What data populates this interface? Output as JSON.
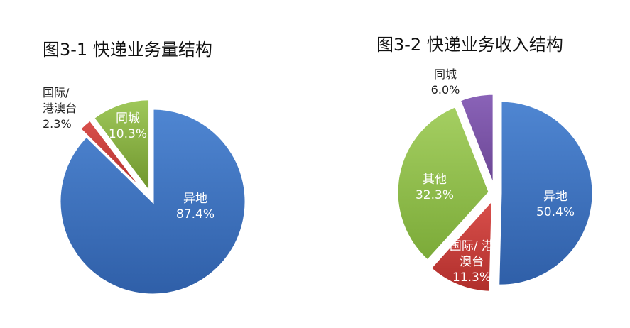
{
  "chart_data": [
    {
      "type": "pie",
      "title": "图3-1   快递业务量结构",
      "slices": [
        {
          "name": "异地",
          "value": 87.4,
          "label": "87.4%",
          "color": "#3E74C3"
        },
        {
          "name": "国际/港澳台",
          "name_lines": [
            "国际/",
            "港澳台"
          ],
          "value": 2.3,
          "label": "2.3%",
          "color": "#C93A37"
        },
        {
          "name": "同城",
          "value": 10.3,
          "label": "10.3%",
          "color": "#86AA3A"
        }
      ]
    },
    {
      "type": "pie",
      "title": "图3-2   快递业务收入结构",
      "slices": [
        {
          "name": "异地",
          "value": 50.4,
          "label": "50.4%",
          "color": "#3E74C3"
        },
        {
          "name": "国际/港澳台",
          "name_lines": [
            "国际/ 港",
            "澳台"
          ],
          "value": 11.3,
          "label": "11.3%",
          "color": "#C93A37"
        },
        {
          "name": "其他",
          "value": 32.3,
          "label": "32.3%",
          "color": "#8DBC48"
        },
        {
          "name": "同城",
          "value": 6.0,
          "label": "6.0%",
          "color": "#7952A6"
        }
      ]
    }
  ]
}
